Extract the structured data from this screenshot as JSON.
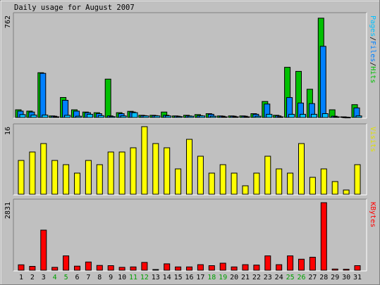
{
  "title": "Daily usage for August 2007",
  "colors": {
    "background": "#c0c0c0",
    "hits": "#00c000",
    "files": "#0080ff",
    "pages": "#00c0ff",
    "visits": "#ffff00",
    "kbytes": "#ff0000",
    "weekend_label": "#00a000",
    "weekday_label": "#000000"
  },
  "legend_hits": {
    "pages": "Pages",
    "sep1": "/",
    "files": "Files",
    "sep2": "/",
    "hits": "Hits"
  },
  "legend_visits": "Visits",
  "legend_kbytes": "KBytes",
  "chart_data": {
    "type": "bar",
    "x": [
      "1",
      "2",
      "3",
      "4",
      "5",
      "6",
      "7",
      "8",
      "9",
      "10",
      "11",
      "12",
      "13",
      "14",
      "15",
      "16",
      "17",
      "18",
      "19",
      "20",
      "21",
      "22",
      "23",
      "24",
      "25",
      "26",
      "27",
      "28",
      "29",
      "30",
      "31"
    ],
    "weekend_days": [
      "4",
      "5",
      "11",
      "12",
      "18",
      "19",
      "25",
      "26"
    ],
    "panels": [
      {
        "name": "hits_files_pages",
        "ymax_label": "762",
        "ylim": [
          0,
          762
        ],
        "series": [
          {
            "name": "Hits",
            "values": [
              58,
              48,
              335,
              12,
              150,
              58,
              41,
              36,
              287,
              36,
              46,
              17,
              17,
              41,
              12,
              17,
              22,
              29,
              12,
              12,
              12,
              29,
              120,
              17,
              375,
              345,
              211,
              742,
              58,
              5,
              96
            ]
          },
          {
            "name": "Files",
            "values": [
              48,
              41,
              330,
              10,
              129,
              48,
              36,
              29,
              12,
              29,
              41,
              14,
              14,
              17,
              10,
              12,
              14,
              24,
              10,
              10,
              10,
              24,
              101,
              12,
              149,
              108,
              104,
              532,
              10,
              3,
              72
            ]
          },
          {
            "name": "Pages",
            "values": [
              22,
              19,
              19,
              5,
              17,
              10,
              24,
              14,
              7,
              12,
              36,
              12,
              12,
              12,
              7,
              10,
              12,
              10,
              5,
              5,
              5,
              10,
              24,
              5,
              24,
              24,
              24,
              29,
              5,
              2,
              12
            ]
          }
        ]
      },
      {
        "name": "visits",
        "ymax_label": "16",
        "ylim": [
          0,
          16
        ],
        "series": [
          {
            "name": "Visits",
            "values": [
              8,
              10,
              12,
              8,
              7,
              5,
              8,
              7,
              10,
              10,
              11,
              16,
              12,
              11,
              6,
              13,
              9,
              5,
              7,
              5,
              2,
              5,
              9,
              6,
              5,
              12,
              4,
              6,
              3,
              1,
              7
            ]
          }
        ]
      },
      {
        "name": "kbytes",
        "ymax_label": "2831",
        "ylim": [
          0,
          2831
        ],
        "series": [
          {
            "name": "KBytes",
            "values": [
              226,
              161,
              1681,
              120,
              601,
              171,
              344,
              200,
              192,
              120,
              140,
              328,
              30,
              268,
              140,
              140,
              232,
              192,
              294,
              140,
              232,
              216,
              601,
              232,
              601,
              464,
              546,
              2831,
              50,
              40,
              192
            ]
          }
        ]
      }
    ]
  }
}
